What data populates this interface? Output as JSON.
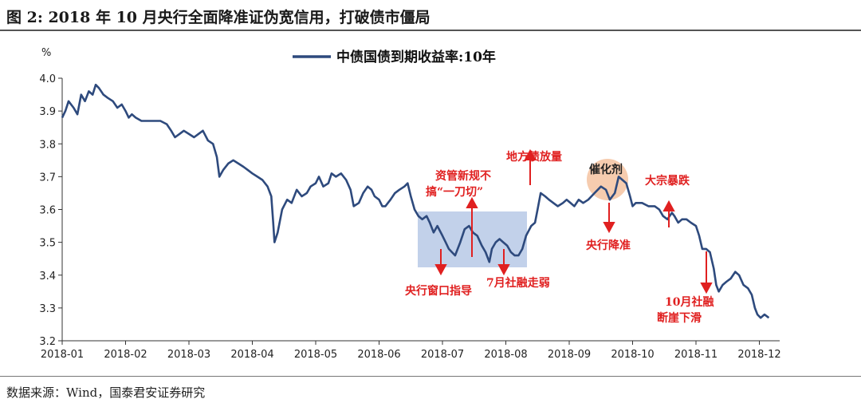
{
  "header": {
    "title": "图 2:  2018 年 10 月央行全面降准证伪宽信用，打破债市僵局"
  },
  "footer": {
    "source": "数据来源：Wind，国泰君安证券研究"
  },
  "colors": {
    "line": "#2e4a7d",
    "annotation": "#e02020",
    "box_fill": "#b7c9e6",
    "circle_fill": "#f5c7a6"
  },
  "chart_data": {
    "type": "line",
    "title": "",
    "ylabel": "%",
    "xlabel": "",
    "ylim": [
      3.2,
      4.0
    ],
    "yticks": [
      "3.2",
      "3.3",
      "3.4",
      "3.5",
      "3.6",
      "3.7",
      "3.8",
      "3.9",
      "4.0"
    ],
    "xticks": [
      "2018-01",
      "2018-02",
      "2018-03",
      "2018-04",
      "2018-05",
      "2018-06",
      "2018-07",
      "2018-08",
      "2018-09",
      "2018-10",
      "2018-11",
      "2018-12"
    ],
    "legend_position": "top-center",
    "series": [
      {
        "name": "中债国债到期收益率:10年",
        "points": [
          [
            0.0,
            3.88
          ],
          [
            0.05,
            3.9
          ],
          [
            0.1,
            3.93
          ],
          [
            0.18,
            3.91
          ],
          [
            0.24,
            3.89
          ],
          [
            0.3,
            3.95
          ],
          [
            0.36,
            3.93
          ],
          [
            0.42,
            3.96
          ],
          [
            0.48,
            3.95
          ],
          [
            0.53,
            3.98
          ],
          [
            0.58,
            3.97
          ],
          [
            0.65,
            3.95
          ],
          [
            0.72,
            3.94
          ],
          [
            0.8,
            3.93
          ],
          [
            0.87,
            3.91
          ],
          [
            0.94,
            3.92
          ],
          [
            1.0,
            3.9
          ],
          [
            1.05,
            3.88
          ],
          [
            1.1,
            3.89
          ],
          [
            1.16,
            3.88
          ],
          [
            1.25,
            3.87
          ],
          [
            1.4,
            3.87
          ],
          [
            1.55,
            3.87
          ],
          [
            1.65,
            3.86
          ],
          [
            1.72,
            3.84
          ],
          [
            1.78,
            3.82
          ],
          [
            1.85,
            3.83
          ],
          [
            1.92,
            3.84
          ],
          [
            2.0,
            3.83
          ],
          [
            2.08,
            3.82
          ],
          [
            2.15,
            3.83
          ],
          [
            2.22,
            3.84
          ],
          [
            2.3,
            3.81
          ],
          [
            2.38,
            3.8
          ],
          [
            2.44,
            3.76
          ],
          [
            2.48,
            3.7
          ],
          [
            2.54,
            3.72
          ],
          [
            2.62,
            3.74
          ],
          [
            2.7,
            3.75
          ],
          [
            2.78,
            3.74
          ],
          [
            2.86,
            3.73
          ],
          [
            2.93,
            3.72
          ],
          [
            3.0,
            3.71
          ],
          [
            3.08,
            3.7
          ],
          [
            3.16,
            3.69
          ],
          [
            3.24,
            3.67
          ],
          [
            3.3,
            3.64
          ],
          [
            3.33,
            3.56
          ],
          [
            3.35,
            3.5
          ],
          [
            3.4,
            3.53
          ],
          [
            3.47,
            3.6
          ],
          [
            3.55,
            3.63
          ],
          [
            3.62,
            3.62
          ],
          [
            3.7,
            3.66
          ],
          [
            3.78,
            3.64
          ],
          [
            3.86,
            3.65
          ],
          [
            3.92,
            3.67
          ],
          [
            4.0,
            3.68
          ],
          [
            4.05,
            3.7
          ],
          [
            4.12,
            3.67
          ],
          [
            4.2,
            3.68
          ],
          [
            4.25,
            3.71
          ],
          [
            4.32,
            3.7
          ],
          [
            4.4,
            3.71
          ],
          [
            4.48,
            3.69
          ],
          [
            4.55,
            3.66
          ],
          [
            4.6,
            3.61
          ],
          [
            4.68,
            3.62
          ],
          [
            4.75,
            3.65
          ],
          [
            4.82,
            3.67
          ],
          [
            4.88,
            3.66
          ],
          [
            4.93,
            3.64
          ],
          [
            5.0,
            3.63
          ],
          [
            5.05,
            3.61
          ],
          [
            5.1,
            3.61
          ],
          [
            5.18,
            3.63
          ],
          [
            5.25,
            3.65
          ],
          [
            5.32,
            3.66
          ],
          [
            5.4,
            3.67
          ],
          [
            5.45,
            3.68
          ],
          [
            5.5,
            3.64
          ],
          [
            5.56,
            3.6
          ],
          [
            5.62,
            3.58
          ],
          [
            5.68,
            3.57
          ],
          [
            5.75,
            3.58
          ],
          [
            5.8,
            3.56
          ],
          [
            5.86,
            3.53
          ],
          [
            5.92,
            3.55
          ],
          [
            6.0,
            3.52
          ],
          [
            6.05,
            3.5
          ],
          [
            6.1,
            3.48
          ],
          [
            6.15,
            3.47
          ],
          [
            6.2,
            3.46
          ],
          [
            6.28,
            3.5
          ],
          [
            6.35,
            3.54
          ],
          [
            6.42,
            3.55
          ],
          [
            6.48,
            3.53
          ],
          [
            6.55,
            3.52
          ],
          [
            6.62,
            3.49
          ],
          [
            6.68,
            3.47
          ],
          [
            6.74,
            3.44
          ],
          [
            6.78,
            3.48
          ],
          [
            6.84,
            3.5
          ],
          [
            6.9,
            3.51
          ],
          [
            6.96,
            3.5
          ],
          [
            7.02,
            3.49
          ],
          [
            7.08,
            3.47
          ],
          [
            7.14,
            3.46
          ],
          [
            7.2,
            3.46
          ],
          [
            7.26,
            3.48
          ],
          [
            7.32,
            3.52
          ],
          [
            7.4,
            3.55
          ],
          [
            7.46,
            3.56
          ],
          [
            7.5,
            3.6
          ],
          [
            7.55,
            3.65
          ],
          [
            7.62,
            3.64
          ],
          [
            7.68,
            3.63
          ],
          [
            7.75,
            3.62
          ],
          [
            7.82,
            3.61
          ],
          [
            7.9,
            3.62
          ],
          [
            7.96,
            3.63
          ],
          [
            8.02,
            3.62
          ],
          [
            8.08,
            3.61
          ],
          [
            8.15,
            3.63
          ],
          [
            8.22,
            3.62
          ],
          [
            8.3,
            3.63
          ],
          [
            8.4,
            3.65
          ],
          [
            8.5,
            3.67
          ],
          [
            8.58,
            3.66
          ],
          [
            8.64,
            3.63
          ],
          [
            8.72,
            3.65
          ],
          [
            8.78,
            3.7
          ],
          [
            8.84,
            3.69
          ],
          [
            8.9,
            3.68
          ],
          [
            8.96,
            3.64
          ],
          [
            9.0,
            3.61
          ],
          [
            9.05,
            3.62
          ],
          [
            9.15,
            3.62
          ],
          [
            9.25,
            3.61
          ],
          [
            9.35,
            3.61
          ],
          [
            9.42,
            3.6
          ],
          [
            9.48,
            3.58
          ],
          [
            9.55,
            3.57
          ],
          [
            9.62,
            3.59
          ],
          [
            9.66,
            3.58
          ],
          [
            9.72,
            3.56
          ],
          [
            9.78,
            3.57
          ],
          [
            9.85,
            3.57
          ],
          [
            9.92,
            3.56
          ],
          [
            10.0,
            3.55
          ],
          [
            10.05,
            3.52
          ],
          [
            10.1,
            3.48
          ],
          [
            10.16,
            3.48
          ],
          [
            10.22,
            3.47
          ],
          [
            10.28,
            3.42
          ],
          [
            10.32,
            3.37
          ],
          [
            10.36,
            3.35
          ],
          [
            10.42,
            3.37
          ],
          [
            10.48,
            3.38
          ],
          [
            10.55,
            3.39
          ],
          [
            10.62,
            3.41
          ],
          [
            10.68,
            3.4
          ],
          [
            10.75,
            3.37
          ],
          [
            10.82,
            3.36
          ],
          [
            10.88,
            3.34
          ],
          [
            10.93,
            3.3
          ],
          [
            10.97,
            3.28
          ],
          [
            11.02,
            3.27
          ],
          [
            11.08,
            3.28
          ],
          [
            11.15,
            3.27
          ]
        ]
      }
    ],
    "annotations": [
      {
        "text": "资管新规不",
        "text2": "搞“一刀切”"
      },
      {
        "text": "地方债放量"
      },
      {
        "text": "催化剂"
      },
      {
        "text": "大宗暴跌"
      },
      {
        "text": "央行降准"
      },
      {
        "text": "央行窗口指导"
      },
      {
        "text": "7月社融走弱"
      },
      {
        "text": "10月社融",
        "text2": "断崖下滑"
      }
    ]
  }
}
